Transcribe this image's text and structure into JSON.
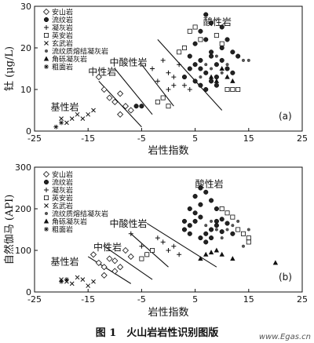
{
  "caption": "图 1　火山岩岩性识别图版",
  "watermark": "www.Egas.cn",
  "legend_items": [
    {
      "label": "安山岩",
      "marker": "diamond-open"
    },
    {
      "label": "流纹岩",
      "marker": "circle-filled"
    },
    {
      "label": "凝灰岩",
      "marker": "plus"
    },
    {
      "label": "英安岩",
      "marker": "square-open"
    },
    {
      "label": "玄武岩",
      "marker": "cross"
    },
    {
      "label": "流纹质熔结凝灰岩",
      "marker": "dot"
    },
    {
      "label": "角砾凝灰岩",
      "marker": "triangle-filled"
    },
    {
      "label": "粗面岩",
      "marker": "star"
    }
  ],
  "chart_data": [
    {
      "type": "scatter",
      "panel_label": "(a)",
      "xlabel": "岩性指数",
      "ylabel": "钍 (μg/L)",
      "xlim": [
        -25,
        25
      ],
      "ylim": [
        0,
        30
      ],
      "xticks": [
        "-25",
        "-15",
        "-5",
        "5",
        "15",
        "25"
      ],
      "yticks": [
        "0",
        "10",
        "20",
        "30"
      ],
      "region_labels": [
        "基性岩",
        "中性岩",
        "中酸性岩",
        "酸性岩"
      ],
      "boundaries": [
        [
          [
            -13,
            12
          ],
          [
            -5,
            1
          ]
        ],
        [
          [
            -10,
            15
          ],
          [
            -3,
            4
          ]
        ],
        [
          [
            -5,
            16
          ],
          [
            1,
            6
          ]
        ],
        [
          [
            -2,
            22
          ],
          [
            10,
            5
          ]
        ]
      ],
      "series": [
        {
          "name": "安山岩",
          "marker": "diamond-open",
          "points": [
            [
              -13,
              13
            ],
            [
              -12,
              10
            ],
            [
              -11,
              8
            ],
            [
              -10,
              7
            ],
            [
              -9,
              9
            ],
            [
              -8,
              6
            ],
            [
              -7,
              5
            ],
            [
              -9,
              4
            ]
          ]
        },
        {
          "name": "流纹岩",
          "marker": "circle-filled",
          "points": [
            [
              3,
              13
            ],
            [
              4,
              15
            ],
            [
              5,
              16
            ],
            [
              6,
              17
            ],
            [
              7,
              14
            ],
            [
              8,
              18
            ],
            [
              9,
              16
            ],
            [
              10,
              20
            ],
            [
              4,
              18
            ],
            [
              5,
              21
            ],
            [
              6,
              15
            ],
            [
              7,
              22
            ],
            [
              8,
              19
            ],
            [
              9,
              13
            ],
            [
              10,
              17
            ],
            [
              11,
              15
            ],
            [
              6,
              24
            ],
            [
              7,
              28
            ],
            [
              8,
              26
            ],
            [
              12,
              19
            ],
            [
              13,
              18
            ],
            [
              11,
              22
            ],
            [
              5,
              12
            ],
            [
              6,
              11
            ],
            [
              9,
              11
            ],
            [
              10,
              25
            ],
            [
              12,
              14
            ],
            [
              7,
              10
            ],
            [
              8,
              12
            ],
            [
              -6,
              6
            ],
            [
              -5,
              6
            ]
          ]
        },
        {
          "name": "凝灰岩",
          "marker": "plus",
          "points": [
            [
              -1,
              17
            ],
            [
              0,
              14
            ],
            [
              1,
              13
            ],
            [
              2,
              16
            ],
            [
              3,
              11
            ],
            [
              -3,
              15
            ],
            [
              -2,
              12
            ],
            [
              1,
              11
            ],
            [
              0,
              10
            ],
            [
              4,
              10
            ]
          ]
        },
        {
          "name": "英安岩",
          "marker": "square-open",
          "points": [
            [
              2,
              19
            ],
            [
              3,
              20
            ],
            [
              4,
              24
            ],
            [
              5,
              25
            ],
            [
              6,
              22
            ],
            [
              9,
              23
            ],
            [
              10,
              21
            ],
            [
              11,
              10
            ],
            [
              12,
              10
            ],
            [
              13,
              10
            ],
            [
              -2,
              7
            ],
            [
              -1,
              8
            ],
            [
              0,
              6
            ]
          ]
        },
        {
          "name": "玄武岩",
          "marker": "cross",
          "points": [
            [
              -20,
              3
            ],
            [
              -19,
              2
            ],
            [
              -18,
              3
            ],
            [
              -17,
              4
            ],
            [
              -16,
              3
            ],
            [
              -15,
              4
            ],
            [
              -14,
              5
            ]
          ]
        },
        {
          "name": "流纹质熔结凝灰岩",
          "marker": "dot",
          "points": [
            [
              6,
              13
            ],
            [
              7,
              16
            ],
            [
              8,
              15
            ],
            [
              9,
              18
            ],
            [
              10,
              14
            ],
            [
              11,
              16
            ],
            [
              14,
              17
            ],
            [
              15,
              17
            ]
          ]
        },
        {
          "name": "角砾凝灰岩",
          "marker": "triangle-filled",
          "points": [
            [
              8,
              13
            ],
            [
              9,
              12
            ],
            [
              10,
              15
            ],
            [
              11,
              13
            ],
            [
              12,
              12
            ]
          ]
        },
        {
          "name": "粗面岩",
          "marker": "star",
          "points": [
            [
              -21,
              1
            ],
            [
              -20,
              2
            ]
          ]
        }
      ]
    },
    {
      "type": "scatter",
      "panel_label": "(b)",
      "xlabel": "岩性指数",
      "ylabel": "自然伽马 (API)",
      "xlim": [
        -25,
        25
      ],
      "ylim": [
        0,
        300
      ],
      "xticks": [
        "-25",
        "-15",
        "-5",
        "5",
        "15",
        "25"
      ],
      "yticks": [
        "0",
        "100",
        "200",
        "300"
      ],
      "region_labels": [
        "基性岩",
        "中性岩",
        "中酸性岩",
        "酸性岩"
      ],
      "boundaries": [
        [
          [
            -15,
            85
          ],
          [
            -7,
            20
          ]
        ],
        [
          [
            -12,
            110
          ],
          [
            -3,
            30
          ]
        ],
        [
          [
            -7,
            140
          ],
          [
            0,
            60
          ]
        ],
        [
          [
            -4,
            165
          ],
          [
            9,
            60
          ]
        ]
      ],
      "series": [
        {
          "name": "安山岩",
          "marker": "diamond-open",
          "points": [
            [
              -14,
              90
            ],
            [
              -13,
              70
            ],
            [
              -12,
              60
            ],
            [
              -11,
              80
            ],
            [
              -10,
              75
            ],
            [
              -9,
              60
            ],
            [
              -8,
              100
            ],
            [
              -7,
              85
            ],
            [
              -12,
              40
            ],
            [
              -10,
              50
            ]
          ]
        },
        {
          "name": "流纹岩",
          "marker": "circle-filled",
          "points": [
            [
              3,
              150
            ],
            [
              4,
              160
            ],
            [
              5,
              170
            ],
            [
              6,
              180
            ],
            [
              7,
              140
            ],
            [
              8,
              150
            ],
            [
              9,
              160
            ],
            [
              10,
              145
            ],
            [
              4,
              200
            ],
            [
              5,
              190
            ],
            [
              6,
              210
            ],
            [
              7,
              240
            ],
            [
              8,
              220
            ],
            [
              9,
              170
            ],
            [
              10,
              175
            ],
            [
              11,
              165
            ],
            [
              6,
              130
            ],
            [
              7,
              120
            ],
            [
              8,
              130
            ],
            [
              12,
              140
            ],
            [
              5,
              230
            ],
            [
              6,
              250
            ],
            [
              9,
              200
            ],
            [
              4,
              140
            ],
            [
              3,
              170
            ]
          ]
        },
        {
          "name": "凝灰岩",
          "marker": "plus",
          "points": [
            [
              -7,
              140
            ],
            [
              -5,
              110
            ],
            [
              -3,
              100
            ],
            [
              -1,
              120
            ],
            [
              1,
              110
            ],
            [
              -4,
              90
            ],
            [
              -2,
              130
            ],
            [
              0,
              100
            ],
            [
              2,
              90
            ]
          ]
        },
        {
          "name": "英安岩",
          "marker": "square-open",
          "points": [
            [
              -5,
              80
            ],
            [
              -4,
              90
            ],
            [
              -3,
              100
            ],
            [
              10,
              200
            ],
            [
              11,
              190
            ],
            [
              12,
              180
            ],
            [
              13,
              150
            ],
            [
              14,
              140
            ],
            [
              15,
              130
            ],
            [
              15,
              120
            ]
          ]
        },
        {
          "name": "玄武岩",
          "marker": "cross",
          "points": [
            [
              -20,
              30
            ],
            [
              -19,
              25
            ],
            [
              -18,
              20
            ],
            [
              -17,
              35
            ],
            [
              -16,
              30
            ],
            [
              -15,
              15
            ],
            [
              -14,
              25
            ]
          ]
        },
        {
          "name": "流纹质熔结凝灰岩",
          "marker": "dot",
          "points": [
            [
              7,
              160
            ],
            [
              8,
              170
            ],
            [
              9,
              150
            ],
            [
              10,
              130
            ],
            [
              11,
              150
            ],
            [
              12,
              160
            ],
            [
              13,
              170
            ],
            [
              14,
              110
            ],
            [
              15,
              150
            ]
          ]
        },
        {
          "name": "角砾凝灰岩",
          "marker": "triangle-filled",
          "points": [
            [
              6,
              80
            ],
            [
              7,
              90
            ],
            [
              8,
              95
            ],
            [
              9,
              100
            ],
            [
              10,
              90
            ],
            [
              12,
              80
            ],
            [
              20,
              70
            ]
          ]
        },
        {
          "name": "粗面岩",
          "marker": "star",
          "points": [
            [
              -20,
              25
            ],
            [
              -19,
              30
            ]
          ]
        }
      ]
    }
  ]
}
